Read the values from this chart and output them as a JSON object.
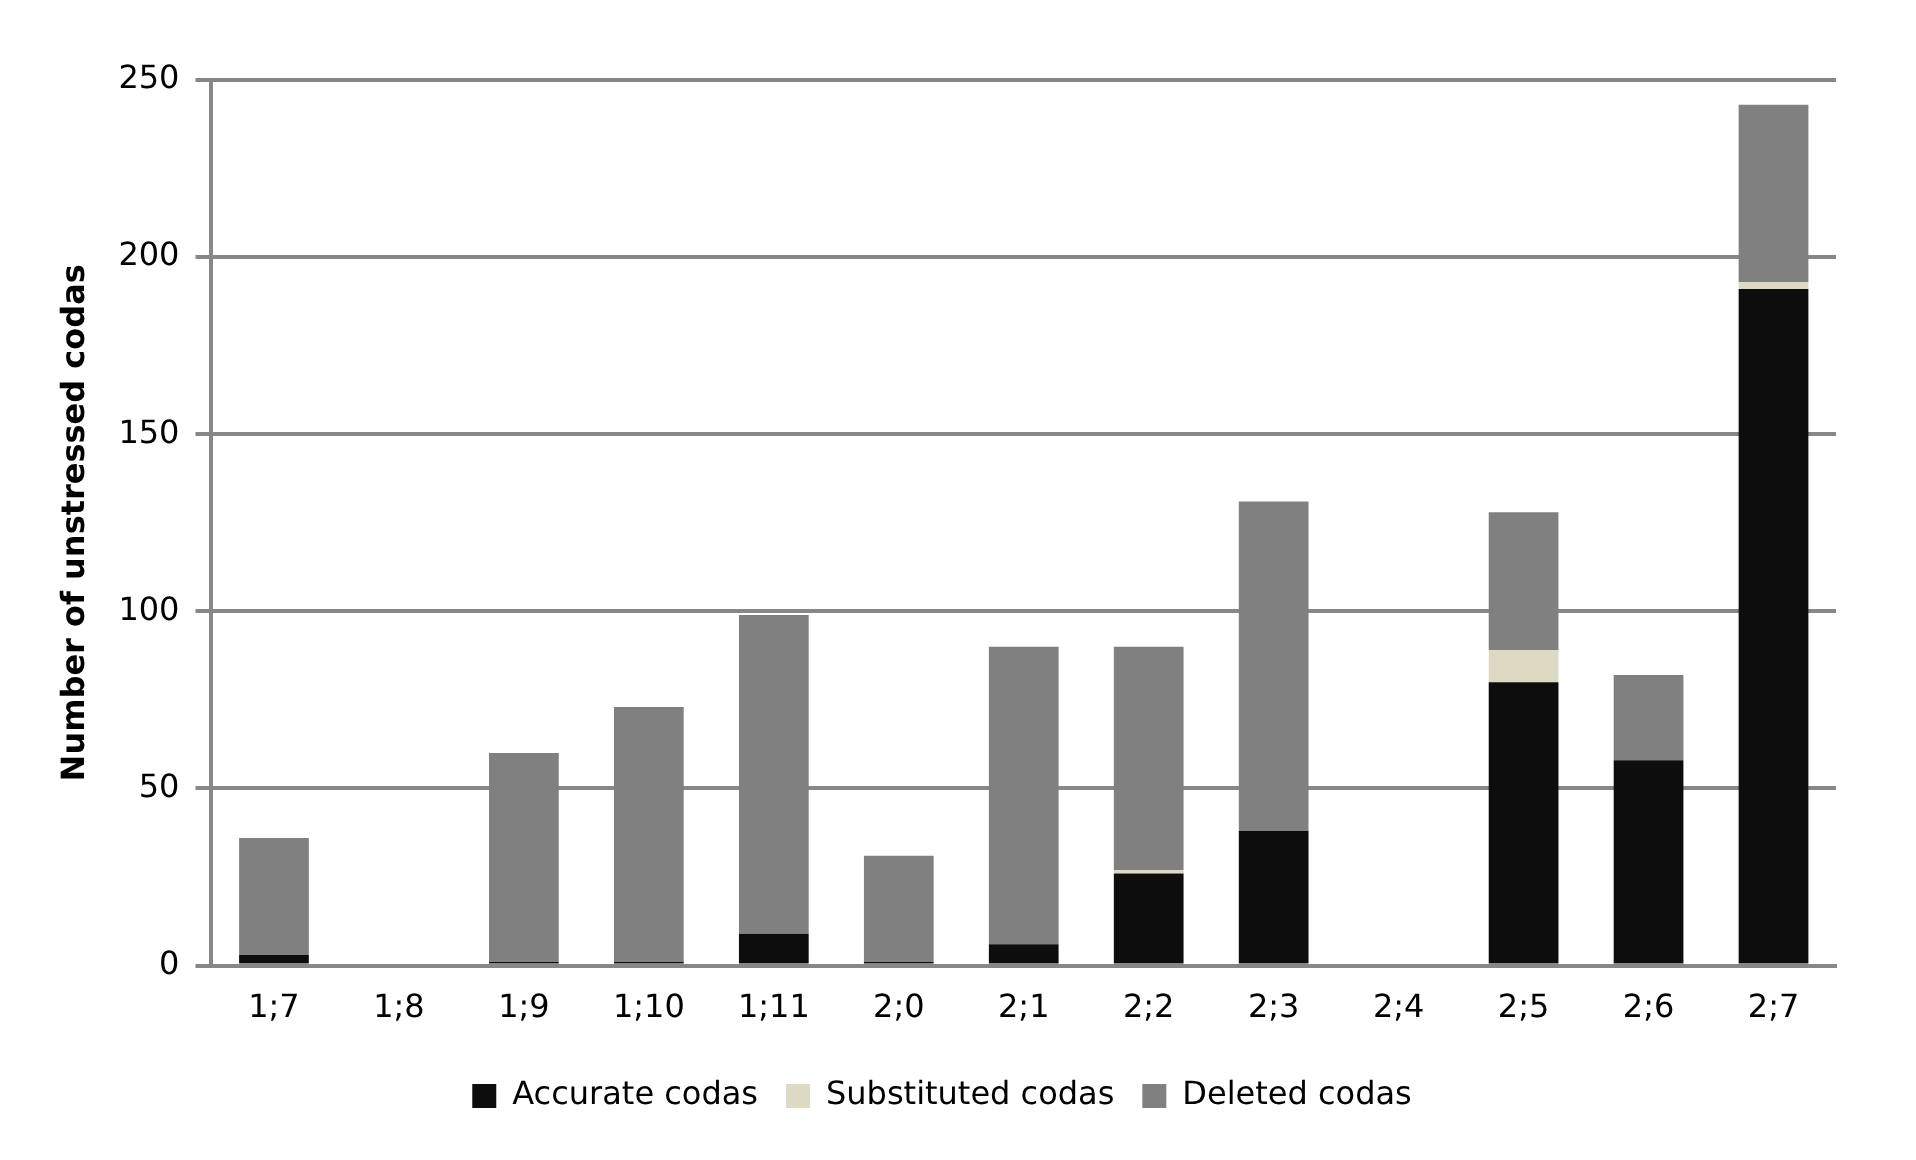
{
  "chart_data": {
    "type": "bar",
    "stacked": true,
    "ylabel": "Number of unstressed codas",
    "categories": [
      "1;7",
      "1;8",
      "1;9",
      "1;10",
      "1;11",
      "2;0",
      "2;1",
      "2;2",
      "2;3",
      "2;4",
      "2;5",
      "2;6",
      "2;7"
    ],
    "series": [
      {
        "name": "Accurate codas",
        "color": "#0d0d0d",
        "values": [
          3,
          0,
          1,
          1,
          9,
          1,
          6,
          26,
          38,
          0,
          80,
          58,
          191
        ]
      },
      {
        "name": "Substituted codas",
        "color": "#ddd9c3",
        "values": [
          0,
          0,
          0,
          0,
          0,
          0,
          0,
          1,
          0,
          0,
          9,
          0,
          2
        ]
      },
      {
        "name": "Deleted codas",
        "color": "#808080",
        "values": [
          33,
          0,
          59,
          72,
          90,
          30,
          84,
          63,
          93,
          0,
          39,
          24,
          50
        ]
      }
    ],
    "ylim": [
      0,
      250
    ],
    "yticks": [
      0,
      50,
      100,
      150,
      200,
      250
    ],
    "grid": "y",
    "legend": "bottom"
  }
}
